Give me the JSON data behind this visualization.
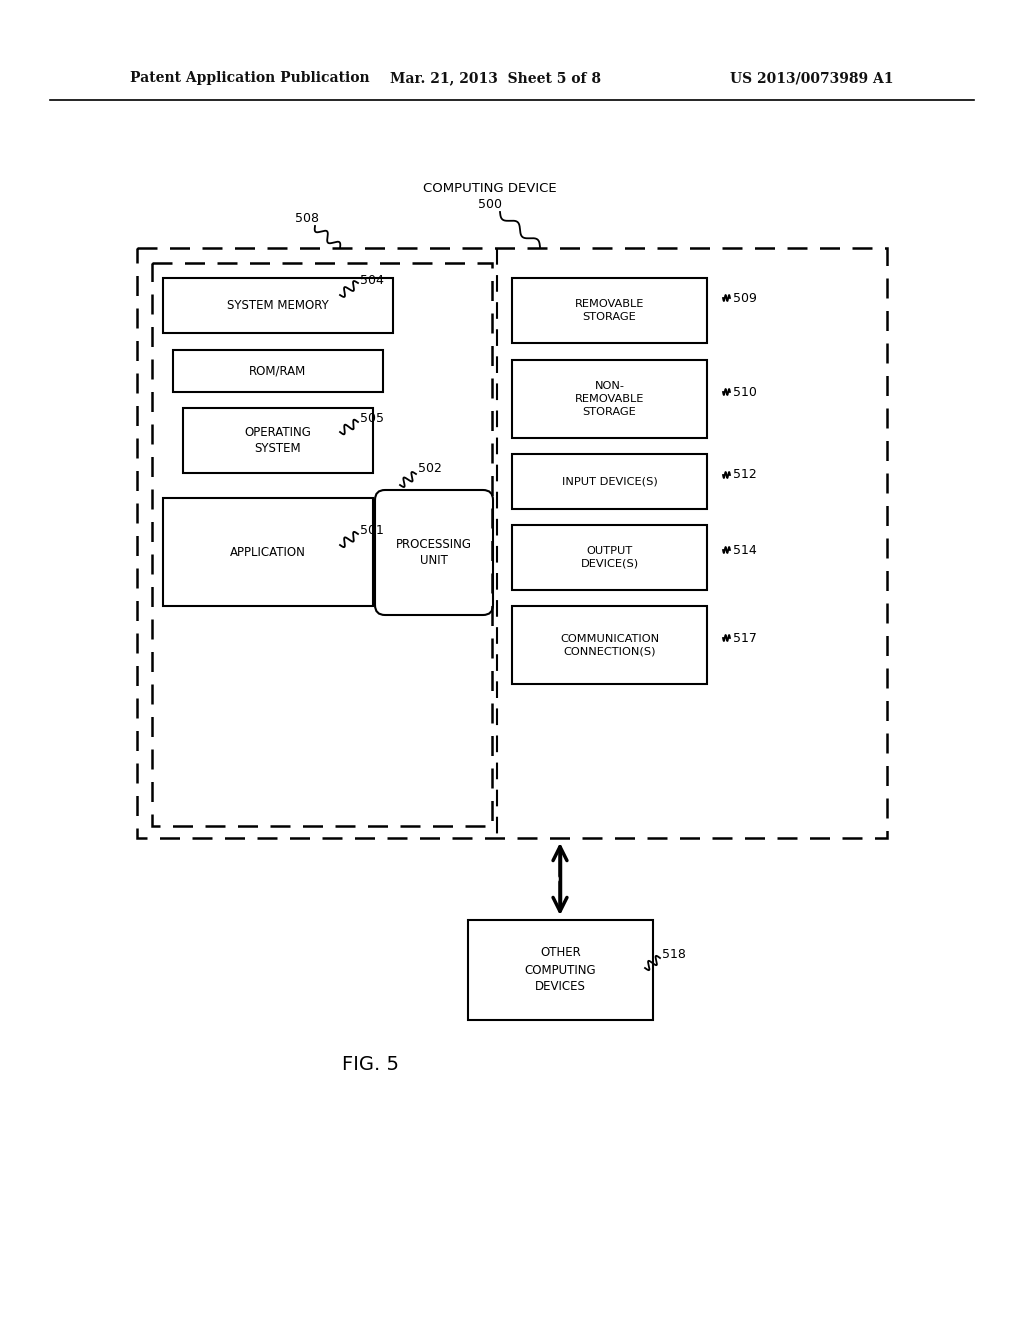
{
  "bg_color": "#ffffff",
  "text_color": "#1a1a1a",
  "header_left": "Patent Application Publication",
  "header_mid": "Mar. 21, 2013  Sheet 5 of 8",
  "header_right": "US 2013/0073989 A1",
  "fig_label": "FIG. 5",
  "computing_device_label": "COMPUTING DEVICE",
  "computing_device_num": "500",
  "labels": {
    "system_memory": "SYSTEM MEMORY",
    "rom_ram": "ROM/RAM",
    "operating_system": "OPERATING\nSYSTEM",
    "application": "APPLICATION",
    "processing_unit": "PROCESSING\nUNIT",
    "removable_storage": "REMOVABLE\nSTORAGE",
    "non_removable_storage": "NON-\nREMOVABLE\nSTORAGE",
    "input_devices": "INPUT DEVICE(S)",
    "output_devices": "OUTPUT\nDEVICE(S)",
    "communication": "COMMUNICATION\nCONNECTION(S)",
    "other_computing": "OTHER\nCOMPUTING\nDEVICES"
  }
}
